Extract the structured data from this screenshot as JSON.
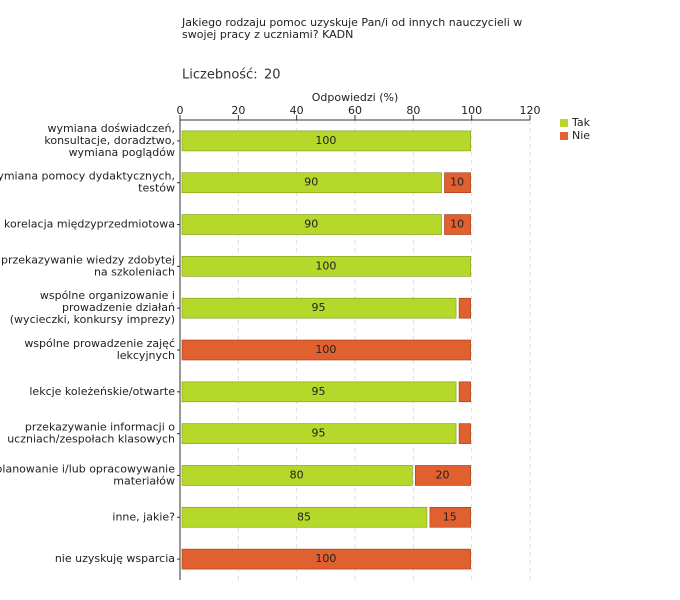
{
  "chart_data": {
    "type": "stacked-hbar",
    "title": "Jakiego rodzaju pomoc uzyskuje Pan/i od innych nauczycieli w\nswojej pracy z uczniami? KADN",
    "sample_size_label": "Liczebność:",
    "sample_size": 20,
    "x_label": "Odpowiedzi (%)",
    "categories": [
      "wymiana doświadczeń,\nkonsultacje, doradztwo,\nwymiana poglądów",
      "wymiana pomocy dydaktycznych,\ntestów",
      "korelacja międzyprzedmiotowa",
      "przekazywanie wiedzy zdobytej\nna szkoleniach",
      "wspólne organizowanie i\nprowadzenie działań\n(wycieczki, konkursy imprezy)",
      "wspólne prowadzenie zajęć\nlekcyjnych",
      "lekcje koleżeńskie/otwarte",
      "przekazywanie informacji o\nuczniach/zespołach klasowych",
      "planowanie i/lub opracowywanie\nmateriałów",
      "inne, jakie?",
      "nie uzyskuję wsparcia"
    ],
    "series": [
      {
        "name": "Tak",
        "color": "#b5d82a",
        "values": [
          100,
          90,
          90,
          100,
          95,
          0,
          95,
          95,
          80,
          85,
          0
        ]
      },
      {
        "name": "Nie",
        "color": "#e06030",
        "values": [
          0,
          10,
          10,
          0,
          5,
          100,
          5,
          5,
          20,
          15,
          100
        ]
      }
    ],
    "xlim": [
      0,
      120
    ],
    "xticks": [
      0,
      20,
      40,
      60,
      80,
      100,
      120
    ],
    "grid": true,
    "legend": "top-right"
  }
}
